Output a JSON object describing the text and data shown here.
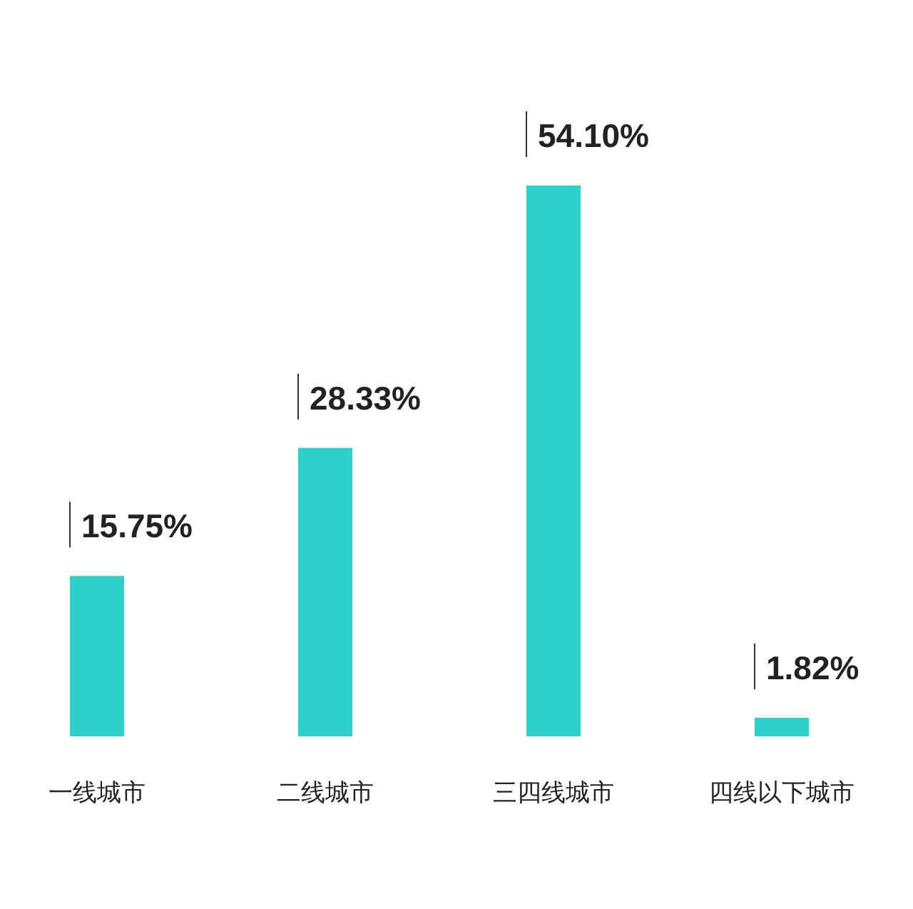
{
  "chart_data": {
    "type": "bar",
    "categories": [
      "一线城市",
      "二线城市",
      "三四线城市",
      "四线以下城市"
    ],
    "values": [
      15.75,
      28.33,
      54.1,
      1.82
    ],
    "color": "#2ecfcb",
    "value_labels": [
      "15.75%",
      "28.33%",
      "54.10%",
      "1.82%"
    ]
  }
}
